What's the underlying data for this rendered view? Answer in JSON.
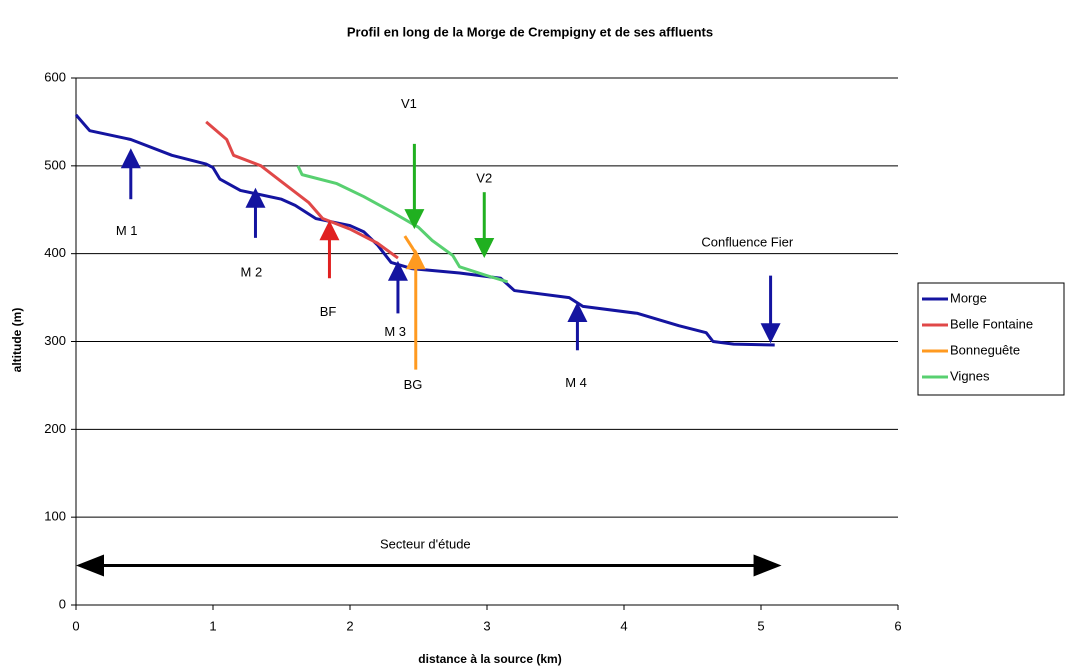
{
  "chart_data": {
    "type": "line",
    "title": "Profil en long de la Morge de Crempigny et de ses affluents",
    "xlabel": "distance à la source (km)",
    "ylabel": "altitude (m)",
    "xlim": [
      0,
      6
    ],
    "xticks": [
      0,
      1,
      2,
      3,
      4,
      5,
      6
    ],
    "ylim": [
      0,
      600
    ],
    "yticks": [
      0,
      100,
      200,
      300,
      400,
      500,
      600
    ],
    "grid": true,
    "legend": "right",
    "series": [
      {
        "name": "Morge",
        "color": "#1414a0",
        "x": [
          0,
          0.1,
          0.4,
          0.7,
          0.95,
          1.0,
          1.05,
          1.2,
          1.5,
          1.6,
          1.75,
          2.0,
          2.1,
          2.2,
          2.3,
          2.45,
          2.8,
          3.1,
          3.15,
          3.2,
          3.6,
          3.7,
          4.1,
          4.4,
          4.6,
          4.65,
          4.8,
          5.1
        ],
        "values": [
          558,
          540,
          530,
          512,
          502,
          498,
          485,
          472,
          462,
          455,
          440,
          432,
          425,
          410,
          390,
          383,
          378,
          372,
          365,
          358,
          350,
          340,
          332,
          318,
          310,
          300,
          297,
          296
        ]
      },
      {
        "name": "Belle Fontaine",
        "color": "#e04848",
        "x": [
          0.95,
          1.1,
          1.15,
          1.35,
          1.5,
          1.7,
          1.8,
          2.0,
          2.2,
          2.35
        ],
        "values": [
          550,
          530,
          512,
          500,
          482,
          458,
          440,
          428,
          412,
          395
        ]
      },
      {
        "name": "Bonneguête",
        "color": "#ff9a20",
        "x": [
          2.4,
          2.45,
          2.5,
          2.52
        ],
        "values": [
          420,
          408,
          395,
          385
        ]
      },
      {
        "name": "Vignes",
        "color": "#58d070",
        "x": [
          1.62,
          1.65,
          1.9,
          2.1,
          2.3,
          2.5,
          2.6,
          2.75,
          2.8,
          3.0,
          3.15
        ],
        "values": [
          500,
          490,
          480,
          465,
          448,
          430,
          415,
          398,
          385,
          375,
          368
        ]
      }
    ],
    "annotations": [
      {
        "text": "M 1",
        "color": "#1414a0"
      },
      {
        "text": "M 2",
        "color": "#1414a0"
      },
      {
        "text": "BF",
        "color": "#e02020"
      },
      {
        "text": "M 3",
        "color": "#1414a0"
      },
      {
        "text": "BG",
        "color": "#ff9a20"
      },
      {
        "text": "V1",
        "color": "#20b020"
      },
      {
        "text": "V2",
        "color": "#20b020"
      },
      {
        "text": "M 4",
        "color": "#1414a0"
      },
      {
        "text": "Confluence Fier",
        "color": "#1414a0"
      },
      {
        "text": "Secteur d'étude",
        "color": "#000000"
      }
    ]
  }
}
